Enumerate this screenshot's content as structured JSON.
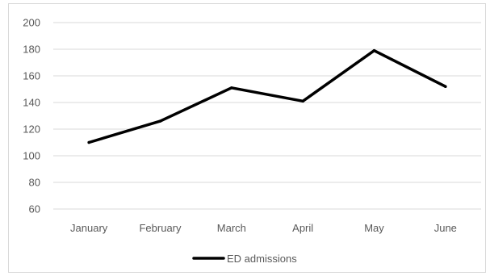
{
  "chart_data": {
    "type": "line",
    "categories": [
      "January",
      "February",
      "March",
      "April",
      "May",
      "June"
    ],
    "series": [
      {
        "name": "ED admissions",
        "values": [
          110,
          126,
          151,
          141,
          179,
          152
        ],
        "color": "#000000"
      }
    ],
    "ylim": [
      60,
      200
    ],
    "yticks": [
      60,
      80,
      100,
      120,
      140,
      160,
      180,
      200
    ],
    "grid": true,
    "legend": "bottom",
    "gridColor": "#d9d9d9",
    "labelColor": "#595959"
  }
}
